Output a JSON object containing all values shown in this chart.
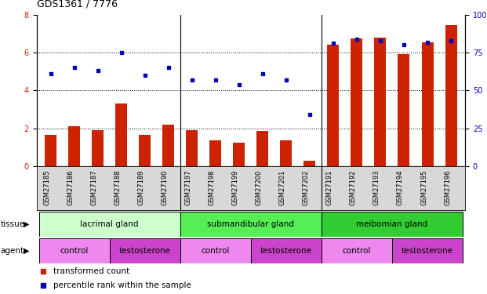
{
  "title": "GDS1361 / 7776",
  "samples": [
    "GSM27185",
    "GSM27186",
    "GSM27187",
    "GSM27188",
    "GSM27189",
    "GSM27190",
    "GSM27197",
    "GSM27198",
    "GSM27199",
    "GSM27200",
    "GSM27201",
    "GSM27202",
    "GSM27191",
    "GSM27192",
    "GSM27193",
    "GSM27194",
    "GSM27195",
    "GSM27196"
  ],
  "bar_values": [
    1.65,
    2.1,
    1.9,
    3.3,
    1.65,
    2.2,
    1.9,
    1.35,
    1.25,
    1.85,
    1.35,
    0.3,
    6.4,
    6.75,
    6.8,
    5.9,
    6.55,
    7.45
  ],
  "dot_values": [
    61,
    65,
    63,
    75,
    60,
    65,
    57,
    57,
    54,
    61,
    57,
    34,
    81,
    84,
    83,
    80,
    82,
    83
  ],
  "bar_color": "#cc2200",
  "dot_color": "#0000bb",
  "ylim_left": [
    0,
    8
  ],
  "ylim_right": [
    0,
    100
  ],
  "yticks_left": [
    0,
    2,
    4,
    6,
    8
  ],
  "ytick_labels_left": [
    "0",
    "2",
    "4",
    "6",
    "8"
  ],
  "ytick_labels_left_color": "#cc2200",
  "yticks_right": [
    0,
    25,
    50,
    75,
    100
  ],
  "ytick_labels_right": [
    "0",
    "25",
    "50",
    "75",
    "100%"
  ],
  "ytick_labels_right_color": "#0000bb",
  "gridline_y": [
    2,
    4,
    6
  ],
  "tissue_groups": [
    {
      "label": "lacrimal gland",
      "start": 0,
      "end": 5,
      "color": "#ccffcc"
    },
    {
      "label": "submandibular gland",
      "start": 6,
      "end": 11,
      "color": "#55ee55"
    },
    {
      "label": "meibomian gland",
      "start": 12,
      "end": 17,
      "color": "#33cc33"
    }
  ],
  "agent_groups": [
    {
      "label": "control",
      "start": 0,
      "end": 2,
      "color": "#ee88ee"
    },
    {
      "label": "testosterone",
      "start": 3,
      "end": 5,
      "color": "#cc44cc"
    },
    {
      "label": "control",
      "start": 6,
      "end": 8,
      "color": "#ee88ee"
    },
    {
      "label": "testosterone",
      "start": 9,
      "end": 11,
      "color": "#cc44cc"
    },
    {
      "label": "control",
      "start": 12,
      "end": 14,
      "color": "#ee88ee"
    },
    {
      "label": "testosterone",
      "start": 15,
      "end": 17,
      "color": "#cc44cc"
    }
  ],
  "legend_items": [
    {
      "label": "transformed count",
      "color": "#cc2200"
    },
    {
      "label": "percentile rank within the sample",
      "color": "#0000bb"
    }
  ],
  "xtick_bg_color": "#d8d8d8",
  "fig_bg_color": "#ffffff"
}
